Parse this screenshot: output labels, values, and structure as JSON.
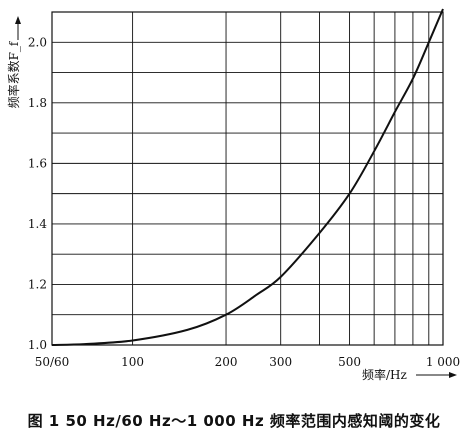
{
  "caption": "图 1   50 Hz/60 Hz～1 000 Hz 频率范围内感知阈的变化",
  "chart_data": {
    "type": "line",
    "title": "",
    "xlabel": "频率/Hz",
    "ylabel": "频率系数F_f",
    "x_scale": "log",
    "xlim": [
      55,
      1000
    ],
    "ylim": [
      1.0,
      2.1
    ],
    "grid": true,
    "x_ticks": [
      {
        "value": 55,
        "label": "50/60"
      },
      {
        "value": 100,
        "label": "100"
      },
      {
        "value": 200,
        "label": "200"
      },
      {
        "value": 300,
        "label": "300"
      },
      {
        "value": 500,
        "label": "500"
      },
      {
        "value": 1000,
        "label": "1 000"
      }
    ],
    "x_gridlines": [
      100,
      200,
      300,
      400,
      500,
      600,
      700,
      800,
      900,
      1000
    ],
    "y_ticks": [
      1.0,
      1.2,
      1.4,
      1.6,
      1.8,
      2.0
    ],
    "y_gridlines": [
      1.1,
      1.2,
      1.3,
      1.4,
      1.5,
      1.6,
      1.7,
      1.8,
      1.9,
      2.0
    ],
    "series": [
      {
        "x": [
          55,
          70,
          100,
          150,
          200,
          250,
          300,
          400,
          500,
          600,
          700,
          800,
          900,
          1000
        ],
        "y": [
          1.0,
          1.003,
          1.015,
          1.05,
          1.1,
          1.165,
          1.225,
          1.37,
          1.5,
          1.64,
          1.77,
          1.88,
          2.0,
          2.11
        ]
      }
    ]
  }
}
